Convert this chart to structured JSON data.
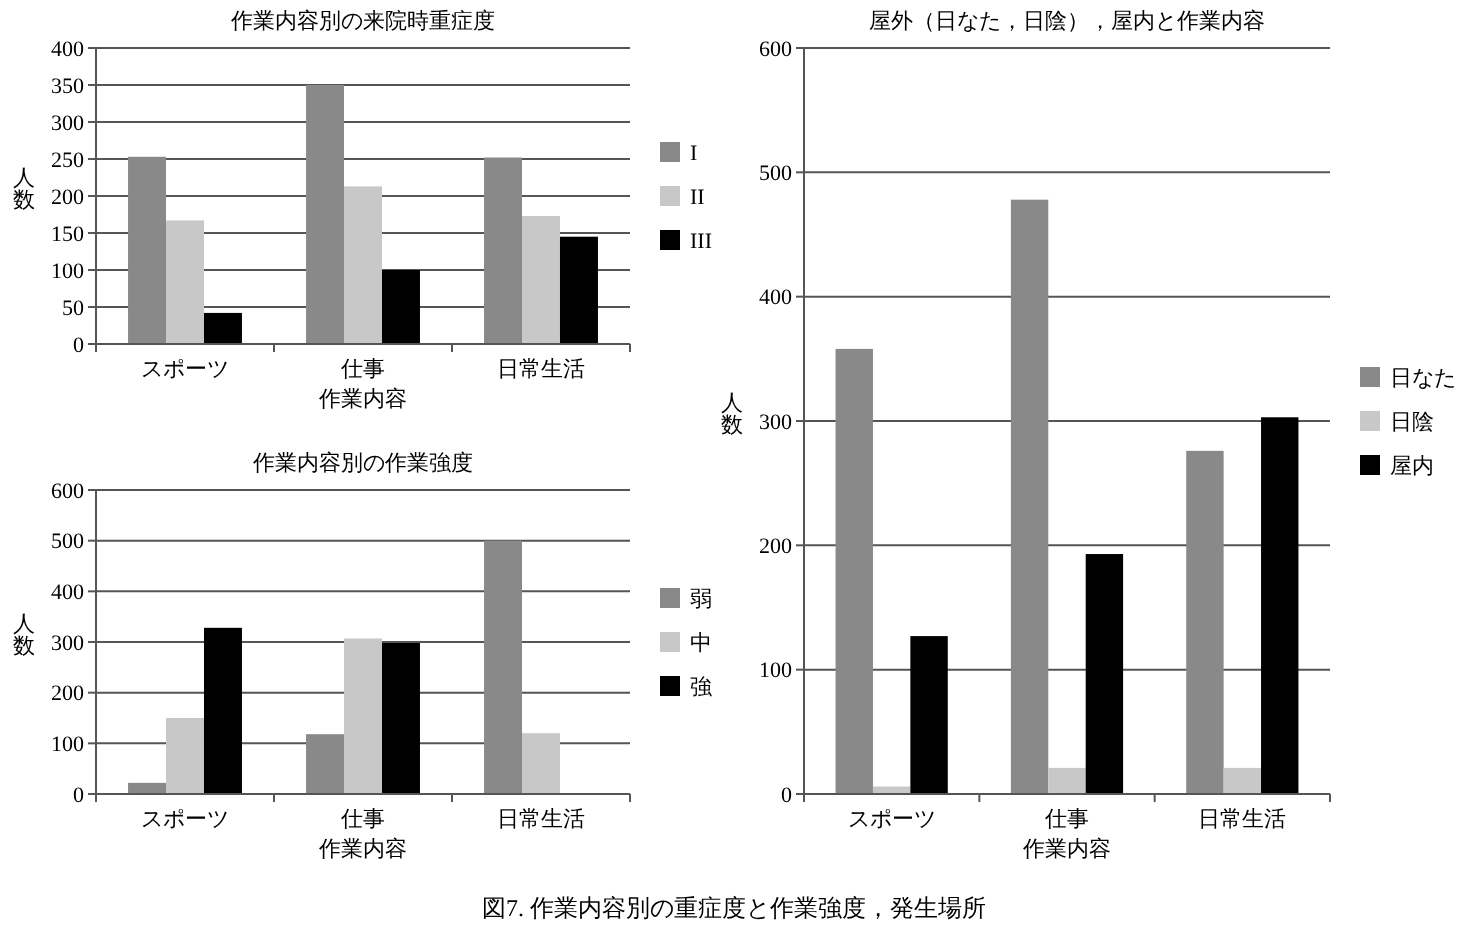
{
  "chart_data": [
    {
      "type": "bar",
      "title": "作業内容別の来院時重症度",
      "xlabel": "作業内容",
      "ylabel": "人数",
      "categories": [
        "スポーツ",
        "仕事",
        "日常生活"
      ],
      "series": [
        {
          "name": "I",
          "color": "#898989",
          "values": [
            253,
            350,
            252
          ]
        },
        {
          "name": "II",
          "color": "#c8c8c8",
          "values": [
            167,
            213,
            173
          ]
        },
        {
          "name": "III",
          "color": "#000000",
          "values": [
            42,
            100,
            145
          ]
        }
      ],
      "ylim": [
        0,
        400
      ],
      "yticks": [
        0,
        50,
        100,
        150,
        200,
        250,
        300,
        350,
        400
      ],
      "grid": "y",
      "legend": "right"
    },
    {
      "type": "bar",
      "title": "作業内容別の作業強度",
      "xlabel": "作業内容",
      "ylabel": "人数",
      "categories": [
        "スポーツ",
        "仕事",
        "日常生活"
      ],
      "series": [
        {
          "name": "弱",
          "color": "#898989",
          "values": [
            22,
            118,
            500
          ]
        },
        {
          "name": "中",
          "color": "#c8c8c8",
          "values": [
            150,
            307,
            120
          ]
        },
        {
          "name": "強",
          "color": "#000000",
          "values": [
            328,
            298,
            0
          ]
        }
      ],
      "ylim": [
        0,
        600
      ],
      "yticks": [
        0,
        100,
        200,
        300,
        400,
        500,
        600
      ],
      "grid": "y",
      "legend": "right"
    },
    {
      "type": "bar",
      "title": "屋外（日なた，日陰），屋内と作業内容",
      "xlabel": "作業内容",
      "ylabel": "人数",
      "categories": [
        "スポーツ",
        "仕事",
        "日常生活"
      ],
      "series": [
        {
          "name": "日なた",
          "color": "#898989",
          "values": [
            358,
            478,
            276
          ]
        },
        {
          "name": "日陰",
          "color": "#c8c8c8",
          "values": [
            6,
            21,
            21
          ]
        },
        {
          "name": "屋内",
          "color": "#000000",
          "values": [
            127,
            193,
            303
          ]
        }
      ],
      "ylim": [
        0,
        600
      ],
      "yticks": [
        0,
        100,
        200,
        300,
        400,
        500,
        600
      ],
      "grid": "y",
      "legend": "right",
      "annotations": [
        "図7. 作業内容別の重症度と作業強度，発生場所"
      ]
    }
  ]
}
